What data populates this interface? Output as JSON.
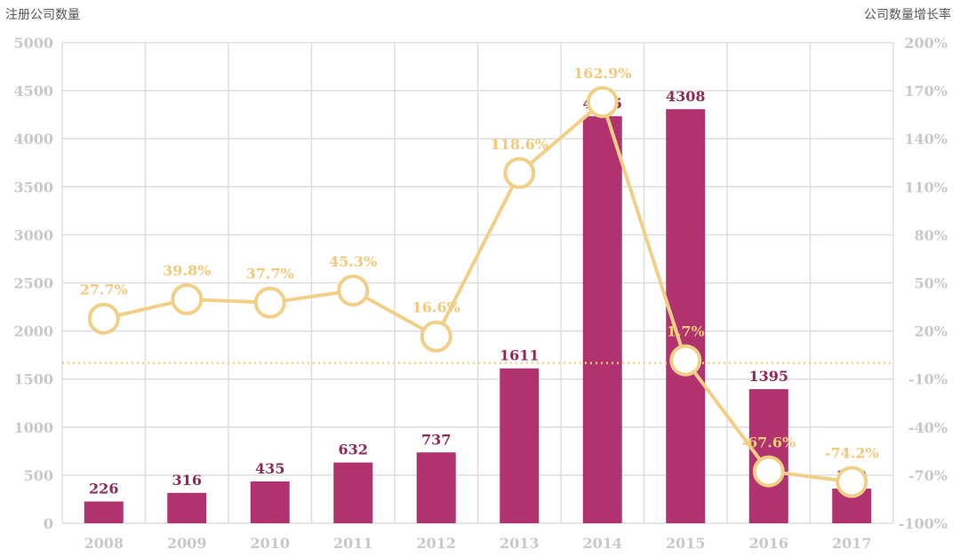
{
  "left_axis_title": "注册公司数量",
  "right_axis_title": "公司数量增长率",
  "colors": {
    "bar": "#b03370",
    "bar_label": "#8e2a5a",
    "line": "#f2cf86",
    "rate_label": "#f2c97a",
    "grid": "#dddddd",
    "tick": "#c8c8c8"
  },
  "chart_data": {
    "type": "bar",
    "categories": [
      "2008",
      "2009",
      "2010",
      "2011",
      "2012",
      "2013",
      "2014",
      "2015",
      "2016",
      "2017"
    ],
    "series": [
      {
        "type": "bar",
        "axis": "left",
        "values": [
          226,
          316,
          435,
          632,
          737,
          1611,
          4235,
          4308,
          1395,
          360
        ]
      },
      {
        "type": "line",
        "axis": "right",
        "values": [
          27.7,
          39.8,
          37.7,
          45.3,
          16.6,
          118.6,
          162.9,
          1.7,
          -67.6,
          -74.2
        ],
        "labels": [
          "27.7%",
          "39.8%",
          "37.7%",
          "45.3%",
          "16.6%",
          "118.6%",
          "162.9%",
          "1.7%",
          "-67.6%",
          "-74.2%"
        ]
      }
    ],
    "y_left": {
      "ylim": [
        0,
        5000
      ],
      "ticks": [
        0,
        500,
        1000,
        1500,
        2000,
        2500,
        3000,
        3500,
        4000,
        4500,
        5000
      ]
    },
    "y_right": {
      "ylim": [
        -100,
        200
      ],
      "ticks": [
        "-100%",
        "-70%",
        "-40%",
        "-10%",
        "20%",
        "50%",
        "80%",
        "110%",
        "140%",
        "170%",
        "200%"
      ]
    },
    "reference_line": {
      "axis": "right",
      "value": 0,
      "style": "dotted"
    },
    "grid": true
  }
}
